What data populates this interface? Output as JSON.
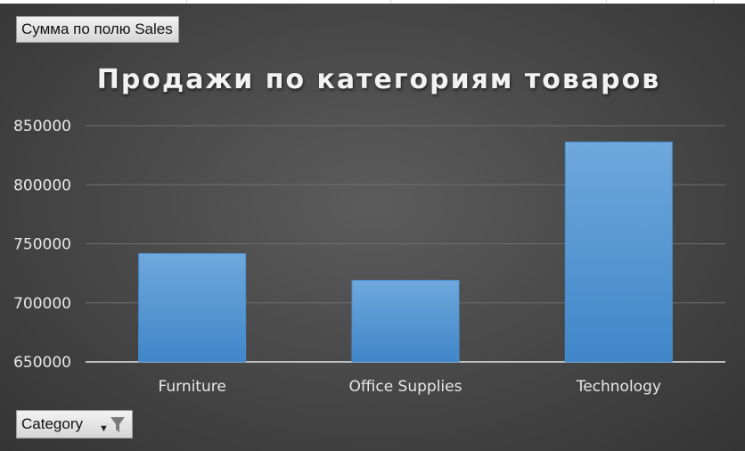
{
  "pivot": {
    "values_field_button": "Сумма по полю Sales",
    "axis_field_button": "Category",
    "filter_icon": "funnel-filter-icon",
    "dropdown_icon": "dropdown-arrow-icon"
  },
  "colors": {
    "background": "#4a4a4a",
    "bar": "#5b9bd5",
    "gridline": "#6e6e6e",
    "axis_line": "#bfbfbf",
    "text": "#e8e8e8"
  },
  "chart_data": {
    "type": "bar",
    "title": "Продажи по категориям товаров",
    "categories": [
      "Furniture",
      "Office Supplies",
      "Technology"
    ],
    "values": [
      741718,
      719047,
      836154
    ],
    "ylim": [
      650000,
      850000
    ],
    "yticks": [
      "850000",
      "800000",
      "750000",
      "700000",
      "650000"
    ],
    "ytick_values": [
      850000,
      800000,
      750000,
      700000,
      650000
    ],
    "xlabel": "",
    "ylabel": "",
    "grid": true,
    "legend": "none"
  }
}
